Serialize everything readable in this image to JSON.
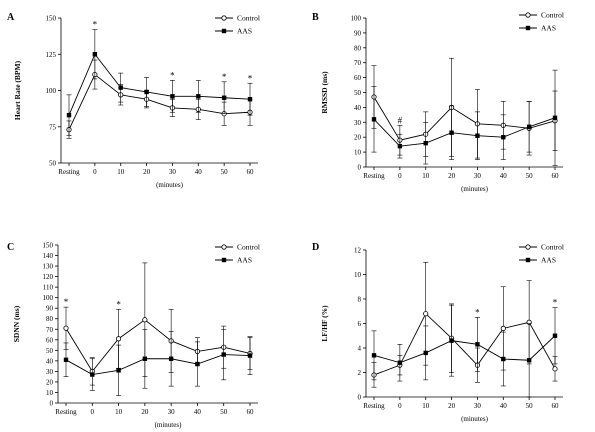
{
  "figure": {
    "panels_order": [
      "A",
      "B",
      "C",
      "D"
    ]
  },
  "chart_data": [
    {
      "panel": "A",
      "type": "line",
      "categories": [
        "Resting",
        "0",
        "10",
        "20",
        "30",
        "40",
        "50",
        "60"
      ],
      "xlabel": "(minutes)",
      "ylabel": "Heart Rate (BPM)",
      "ylim": [
        50,
        150
      ],
      "yticks": [
        "50",
        "75",
        "100",
        "125",
        "150"
      ],
      "legend_position": "top-right",
      "series": [
        {
          "name": "Control",
          "marker": "open-circle",
          "values": [
            73,
            111,
            97,
            94,
            88,
            87,
            84,
            85
          ],
          "error": [
            6,
            10,
            7,
            6,
            6,
            7,
            8,
            9
          ]
        },
        {
          "name": "AAS",
          "marker": "filled-square",
          "values": [
            83,
            125,
            102,
            99,
            96,
            96,
            95,
            94
          ],
          "error": [
            14,
            17,
            10,
            10,
            11,
            11,
            11,
            11
          ]
        }
      ],
      "annotations": [
        {
          "category": "0",
          "text": "*"
        },
        {
          "category": "30",
          "text": "*"
        },
        {
          "category": "50",
          "text": "*"
        },
        {
          "category": "60",
          "text": "*"
        }
      ]
    },
    {
      "panel": "B",
      "type": "line",
      "categories": [
        "Resting",
        "0",
        "10",
        "20",
        "30",
        "40",
        "50",
        "60"
      ],
      "xlabel": "(minutes)",
      "ylabel": "RMSSD (ms)",
      "ylim": [
        0,
        100
      ],
      "yticks": [
        "0",
        "10",
        "20",
        "30",
        "40",
        "50",
        "60",
        "70",
        "80",
        "90",
        "100"
      ],
      "legend_position": "top-right",
      "series": [
        {
          "name": "Control",
          "marker": "open-circle",
          "values": [
            47,
            18,
            22,
            40,
            29,
            28,
            26,
            31
          ],
          "error": [
            21,
            10,
            15,
            33,
            23,
            16,
            18,
            20
          ]
        },
        {
          "name": "AAS",
          "marker": "filled-square",
          "values": [
            32,
            14,
            16,
            23,
            21,
            20,
            27,
            33
          ],
          "error": [
            22,
            8,
            14,
            18,
            16,
            15,
            17,
            32
          ]
        }
      ],
      "annotations": [
        {
          "category": "0",
          "text": "#"
        }
      ]
    },
    {
      "panel": "C",
      "type": "line",
      "categories": [
        "Resting",
        "0",
        "10",
        "20",
        "30",
        "40",
        "50",
        "60"
      ],
      "xlabel": "(minutes)",
      "ylabel": "SDNN (ms)",
      "ylim": [
        0,
        150
      ],
      "yticks": [
        "0",
        "10",
        "20",
        "30",
        "40",
        "50",
        "60",
        "70",
        "80",
        "90",
        "100",
        "110",
        "120",
        "130",
        "140",
        "150"
      ],
      "legend_position": "top-right",
      "series": [
        {
          "name": "Control",
          "marker": "open-circle",
          "values": [
            71,
            30,
            61,
            79,
            59,
            49,
            53,
            47
          ],
          "error": [
            20,
            13,
            28,
            54,
            30,
            13,
            20,
            15
          ]
        },
        {
          "name": "AAS",
          "marker": "filled-square",
          "values": [
            41,
            27,
            31,
            42,
            42,
            37,
            46,
            45
          ],
          "error": [
            16,
            15,
            24,
            28,
            26,
            21,
            24,
            18
          ]
        }
      ],
      "annotations": [
        {
          "category": "Resting",
          "text": "*"
        },
        {
          "category": "10",
          "text": "*"
        }
      ]
    },
    {
      "panel": "D",
      "type": "line",
      "categories": [
        "Resting",
        "0",
        "10",
        "20",
        "30",
        "40",
        "50",
        "60"
      ],
      "xlabel": "(minutes)",
      "ylabel": "LF/HF (%)",
      "ylim": [
        0,
        12
      ],
      "yticks": [
        "0",
        "2",
        "4",
        "6",
        "8",
        "10",
        "12"
      ],
      "legend_position": "top-right",
      "series": [
        {
          "name": "Control",
          "marker": "open-circle",
          "values": [
            1.8,
            2.6,
            6.8,
            4.8,
            2.6,
            5.6,
            6.1,
            2.3
          ],
          "error": [
            1.0,
            0.8,
            4.2,
            2.8,
            1.4,
            3.4,
            3.4,
            1.0
          ]
        },
        {
          "name": "AAS",
          "marker": "filled-square",
          "values": [
            3.4,
            2.8,
            3.6,
            4.6,
            4.3,
            3.1,
            3.0,
            5.0
          ],
          "error": [
            2.0,
            1.5,
            2.2,
            2.9,
            2.2,
            2.2,
            3.0,
            2.3
          ]
        }
      ],
      "annotations": [
        {
          "category": "30",
          "text": "*"
        },
        {
          "category": "60",
          "text": "*"
        }
      ]
    }
  ]
}
